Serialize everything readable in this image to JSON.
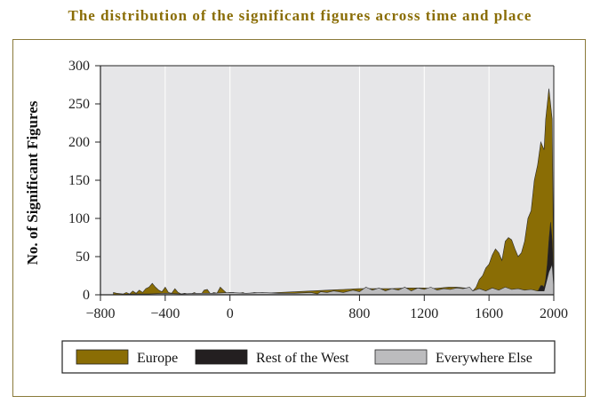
{
  "title": "The distribution of the significant figures across time and place",
  "colors": {
    "title": "#8a6d05",
    "europe": "#8a6d05",
    "west": "#231f20",
    "else": "#bcbcbe",
    "plot_bg": "#e6e6e8",
    "grid": "#ffffff"
  },
  "chart_data": {
    "type": "area",
    "title": "The distribution of the significant figures across time and place",
    "xlabel": "",
    "ylabel": "No. of Significant Figures",
    "xlim": [
      -800,
      2000
    ],
    "ylim": [
      0,
      300
    ],
    "xticks": [
      -800,
      -400,
      0,
      800,
      1200,
      1600,
      2000
    ],
    "xtick_labels": [
      "−800",
      "−400",
      "0",
      "800",
      "1200",
      "1600",
      "2000"
    ],
    "yticks": [
      0,
      50,
      100,
      150,
      200,
      250,
      300
    ],
    "grid": true,
    "legend_position": "bottom",
    "series": [
      {
        "name": "Europe",
        "color": "#8a6d05",
        "x": [
          -720,
          -700,
          -660,
          -640,
          -620,
          -600,
          -580,
          -560,
          -540,
          -520,
          -500,
          -480,
          -460,
          -440,
          -420,
          -400,
          -380,
          -360,
          -340,
          -320,
          -300,
          -280,
          -260,
          -240,
          -220,
          -200,
          -180,
          -160,
          -140,
          -120,
          -100,
          -80,
          -60,
          -40,
          -20,
          0,
          20,
          40,
          60,
          80,
          100,
          150,
          200,
          300,
          400,
          500,
          600,
          700,
          800,
          900,
          1000,
          1100,
          1200,
          1250,
          1300,
          1350,
          1400,
          1450,
          1480,
          1500,
          1520,
          1540,
          1560,
          1580,
          1600,
          1620,
          1640,
          1660,
          1680,
          1700,
          1720,
          1740,
          1760,
          1780,
          1800,
          1820,
          1840,
          1860,
          1880,
          1900,
          1920,
          1940,
          1950,
          1960,
          1970,
          1980,
          1990,
          1995,
          2000
        ],
        "values": [
          3,
          2,
          1,
          3,
          1,
          5,
          2,
          6,
          3,
          8,
          10,
          15,
          10,
          6,
          4,
          10,
          3,
          2,
          8,
          3,
          1,
          2,
          1,
          1,
          3,
          1,
          0,
          6,
          7,
          1,
          3,
          2,
          10,
          6,
          2,
          3,
          3,
          2,
          2,
          3,
          1,
          3,
          2,
          3,
          4,
          5,
          6,
          7,
          8,
          8,
          8,
          9,
          9,
          8,
          9,
          10,
          10,
          9,
          8,
          5,
          10,
          20,
          25,
          35,
          40,
          52,
          60,
          55,
          45,
          70,
          75,
          72,
          60,
          50,
          55,
          70,
          100,
          110,
          150,
          170,
          200,
          190,
          230,
          250,
          270,
          250,
          230,
          120,
          5
        ]
      },
      {
        "name": "Rest of the West",
        "color": "#231f20",
        "x": [
          1880,
          1900,
          1910,
          1920,
          1930,
          1940,
          1950,
          1960,
          1970,
          1980,
          1990,
          1995,
          2000
        ],
        "values": [
          0,
          4,
          8,
          12,
          12,
          10,
          20,
          40,
          70,
          95,
          70,
          40,
          5
        ]
      },
      {
        "name": "Everywhere Else",
        "color": "#bcbcbe",
        "x": [
          -720,
          -600,
          -500,
          -400,
          -300,
          -200,
          -100,
          0,
          100,
          200,
          300,
          400,
          500,
          540,
          560,
          600,
          640,
          700,
          760,
          800,
          840,
          880,
          920,
          960,
          1000,
          1040,
          1080,
          1120,
          1160,
          1200,
          1240,
          1280,
          1320,
          1360,
          1400,
          1440,
          1480,
          1500,
          1540,
          1580,
          1620,
          1660,
          1700,
          1740,
          1780,
          1820,
          1860,
          1900,
          1940,
          1970,
          1990,
          2000
        ],
        "values": [
          0,
          1,
          1,
          2,
          1,
          2,
          2,
          3,
          2,
          3,
          2,
          2,
          3,
          1,
          4,
          3,
          5,
          3,
          6,
          4,
          10,
          6,
          9,
          5,
          8,
          6,
          10,
          5,
          9,
          7,
          10,
          6,
          8,
          7,
          9,
          8,
          10,
          5,
          8,
          5,
          9,
          6,
          10,
          7,
          8,
          6,
          7,
          5,
          5,
          30,
          40,
          10
        ]
      }
    ]
  },
  "legend": [
    {
      "label": "Europe",
      "color": "#8a6d05"
    },
    {
      "label": "Rest of the West",
      "color": "#231f20"
    },
    {
      "label": "Everywhere Else",
      "color": "#bcbcbe"
    }
  ]
}
